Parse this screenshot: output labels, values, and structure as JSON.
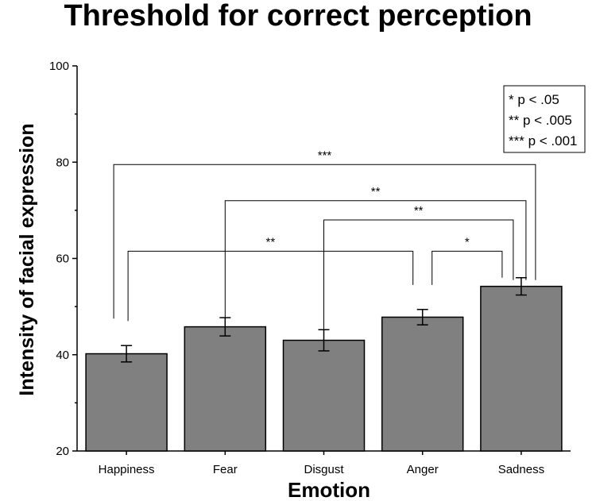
{
  "chart_data": {
    "type": "bar",
    "title": "Threshold for correct perception",
    "xlabel": "Emotion",
    "ylabel": "Intensity of facial expression",
    "ylim": [
      20,
      100
    ],
    "yticks": [
      20,
      40,
      60,
      80,
      100
    ],
    "categories": [
      "Happiness",
      "Fear",
      "Disgust",
      "Anger",
      "Sadness"
    ],
    "values": [
      40.2,
      45.8,
      43.0,
      47.8,
      54.2
    ],
    "errors": [
      1.7,
      1.9,
      2.2,
      1.6,
      1.8
    ],
    "grid": false,
    "legend_position": "top-right",
    "legend": [
      "* p < .05",
      "** p < .005",
      "*** p < .001"
    ],
    "significance": [
      {
        "from": 0,
        "to": 4,
        "label": "***",
        "level": 79.5
      },
      {
        "from": 1,
        "to": 4,
        "label": "**",
        "level": 72.0
      },
      {
        "from": 2,
        "to": 4,
        "label": "**",
        "level": 68.0
      },
      {
        "from": 0,
        "to": 3,
        "label": "**",
        "level": 61.5
      },
      {
        "from": 3,
        "to": 4,
        "label": "*",
        "level": 61.5
      }
    ]
  }
}
